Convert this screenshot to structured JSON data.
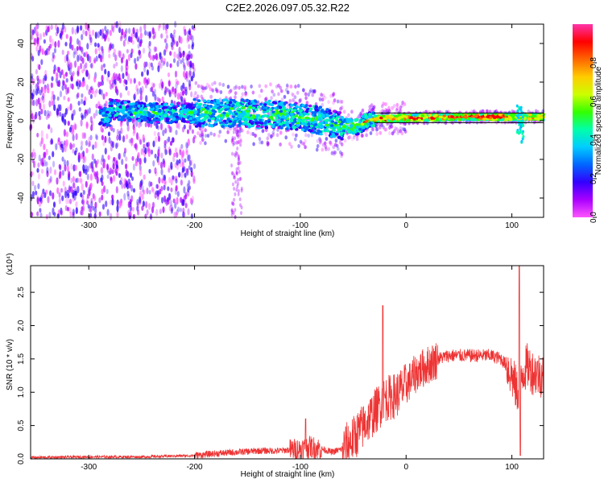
{
  "figure_title": "C2E2.2026.097.05.32.R22",
  "chart_data": [
    {
      "type": "heatmap",
      "xlabel": "Height of straight line (km)",
      "ylabel": "Frequency (Hz)",
      "xlim": [
        -355,
        130
      ],
      "ylim": [
        -50,
        50
      ],
      "xticks": [
        -300,
        -200,
        -100,
        0,
        100
      ],
      "yticks": [
        -40,
        -20,
        0,
        20,
        40
      ],
      "colorbar": {
        "label": "Normalized spectral amplitude",
        "range": [
          0,
          1
        ],
        "ticks": [
          "0.0",
          "0.2",
          "0.4",
          "0.6",
          "0.8"
        ],
        "colors": [
          "#ff55ff",
          "#aa00ff",
          "#3300ff",
          "#0066ff",
          "#00ccff",
          "#00ffaa",
          "#33ff00",
          "#ccff00",
          "#ffcc00",
          "#ff6600",
          "#ff0000",
          "#ff33aa"
        ]
      },
      "features": {
        "noise_region_x": [
          -355,
          -200
        ],
        "center_line": [
          {
            "x": -280,
            "y": 6
          },
          {
            "x": -240,
            "y": 4
          },
          {
            "x": -200,
            "y": 4
          },
          {
            "x": -160,
            "y": 4
          },
          {
            "x": -120,
            "y": 3
          },
          {
            "x": -100,
            "y": 2
          },
          {
            "x": -80,
            "y": 0
          },
          {
            "x": -60,
            "y": -3
          },
          {
            "x": -45,
            "y": -3
          },
          {
            "x": -35,
            "y": 1
          },
          {
            "x": -20,
            "y": 1
          },
          {
            "x": 0,
            "y": 1.5
          },
          {
            "x": 50,
            "y": 2
          },
          {
            "x": 100,
            "y": 2
          },
          {
            "x": 130,
            "y": 2
          }
        ]
      }
    },
    {
      "type": "line",
      "xlabel": "Height of straight line (km)",
      "ylabel": "SNR (10 * v/v)",
      "y_multiplier": "(x10⁴)",
      "xlim": [
        -355,
        130
      ],
      "ylim": [
        0,
        2.9
      ],
      "xticks": [
        -300,
        -200,
        -100,
        0,
        100
      ],
      "yticks": [
        "0.0",
        "0.5",
        "1.0",
        "1.5",
        "2.0",
        "2.5"
      ],
      "color": "#ee3333",
      "series": [
        {
          "x": [
            -355,
            -300,
            -250,
            -200,
            -180,
            -160,
            -140,
            -120,
            -100,
            -90,
            -80,
            -70,
            -60,
            -50,
            -40,
            -30,
            -20,
            -10,
            0,
            10,
            20,
            30,
            40,
            50,
            60,
            70,
            80,
            90,
            95,
            100,
            105,
            110,
            115,
            120,
            130
          ],
          "y": [
            0.02,
            0.03,
            0.03,
            0.05,
            0.08,
            0.1,
            0.12,
            0.12,
            0.15,
            0.18,
            0.15,
            0.1,
            0.15,
            0.3,
            0.5,
            0.7,
            0.9,
            0.95,
            1.1,
            1.3,
            1.4,
            1.5,
            1.55,
            1.55,
            1.55,
            1.55,
            1.55,
            1.5,
            1.4,
            1.25,
            1.0,
            1.3,
            1.4,
            1.3,
            1.25
          ]
        }
      ],
      "spikes": [
        {
          "x": -95,
          "y": 0.6
        },
        {
          "x": -22,
          "y": 2.3
        },
        {
          "x": 107,
          "y": 2.9
        },
        {
          "x": 108,
          "y": 0.05
        }
      ]
    }
  ]
}
